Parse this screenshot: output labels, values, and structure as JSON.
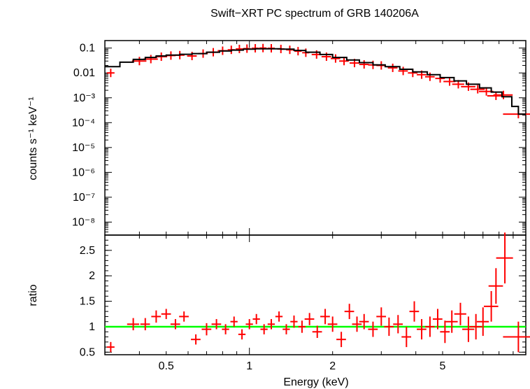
{
  "chart_data": [
    {
      "type": "scatter",
      "panel": "spectrum",
      "title": "Swift−XRT PC spectrum of GRB 140206A",
      "xlabel": "",
      "ylabel": "counts s⁻¹ keV⁻¹",
      "xscale": "log",
      "yscale": "log",
      "xlim": [
        0.3,
        10
      ],
      "ylim": [
        3e-09,
        0.2
      ],
      "y_ticks": [
        {
          "v": 0.1,
          "label": "0.1"
        },
        {
          "v": 0.01,
          "label": "0.01"
        },
        {
          "v": 0.001,
          "label": "10⁻³"
        },
        {
          "v": 0.0001,
          "label": "10⁻⁴"
        },
        {
          "v": 1e-05,
          "label": "10⁻⁵"
        },
        {
          "v": 1e-06,
          "label": "10⁻⁶"
        },
        {
          "v": 1e-07,
          "label": "10⁻⁷"
        },
        {
          "v": 1e-08,
          "label": "10⁻⁸"
        }
      ],
      "series": [
        {
          "kind": "data",
          "color": "#ff0000",
          "points": [
            [
              0.315,
              0.01,
              0.016
            ],
            [
              0.4,
              0.03,
              0.03
            ],
            [
              0.44,
              0.036,
              0.03
            ],
            [
              0.48,
              0.045,
              0.025
            ],
            [
              0.52,
              0.05,
              0.02
            ],
            [
              0.56,
              0.052,
              0.02
            ],
            [
              0.62,
              0.048,
              0.02
            ],
            [
              0.68,
              0.06,
              0.02
            ],
            [
              0.74,
              0.068,
              0.02
            ],
            [
              0.8,
              0.078,
              0.02
            ],
            [
              0.86,
              0.085,
              0.015
            ],
            [
              0.92,
              0.092,
              0.015
            ],
            [
              0.98,
              0.095,
              0.015
            ],
            [
              1.05,
              0.098,
              0.015
            ],
            [
              1.12,
              0.1,
              0.015
            ],
            [
              1.2,
              0.098,
              0.015
            ],
            [
              1.3,
              0.092,
              0.015
            ],
            [
              1.4,
              0.085,
              0.015
            ],
            [
              1.5,
              0.075,
              0.015
            ],
            [
              1.6,
              0.065,
              0.015
            ],
            [
              1.75,
              0.055,
              0.02
            ],
            [
              1.9,
              0.045,
              0.02
            ],
            [
              2.05,
              0.038,
              0.02
            ],
            [
              2.2,
              0.03,
              0.02
            ],
            [
              2.4,
              0.025,
              0.02
            ],
            [
              2.6,
              0.022,
              0.02
            ],
            [
              2.8,
              0.021,
              0.02
            ],
            [
              3.0,
              0.02,
              0.02
            ],
            [
              3.3,
              0.016,
              0.02
            ],
            [
              3.6,
              0.012,
              0.02
            ],
            [
              3.9,
              0.01,
              0.02
            ],
            [
              4.2,
              0.0085,
              0.02
            ],
            [
              4.5,
              0.007,
              0.02
            ],
            [
              4.9,
              0.006,
              0.02
            ],
            [
              5.3,
              0.0045,
              0.025
            ],
            [
              5.7,
              0.0035,
              0.025
            ],
            [
              6.2,
              0.0028,
              0.03
            ],
            [
              6.7,
              0.0022,
              0.03
            ],
            [
              7.2,
              0.0018,
              0.03
            ],
            [
              7.8,
              0.0012,
              0.035
            ],
            [
              8.3,
              0.0013,
              0.04
            ],
            [
              9.4,
              0.00022,
              0.06
            ]
          ]
        },
        {
          "kind": "model",
          "color": "#000000",
          "step_edges": [
            0.3,
            0.34,
            0.38,
            0.42,
            0.46,
            0.5,
            0.56,
            0.62,
            0.7,
            0.78,
            0.86,
            0.95,
            1.05,
            1.15,
            1.3,
            1.45,
            1.6,
            1.8,
            2.0,
            2.25,
            2.5,
            2.8,
            3.1,
            3.5,
            3.9,
            4.4,
            4.9,
            5.5,
            6.1,
            6.8,
            7.5,
            8.2,
            8.9,
            9.4,
            10
          ],
          "step_values": [
            0.018,
            0.027,
            0.035,
            0.042,
            0.048,
            0.052,
            0.056,
            0.06,
            0.068,
            0.076,
            0.083,
            0.09,
            0.094,
            0.094,
            0.09,
            0.08,
            0.068,
            0.055,
            0.042,
            0.033,
            0.026,
            0.021,
            0.018,
            0.014,
            0.011,
            0.0085,
            0.0065,
            0.0048,
            0.0035,
            0.0025,
            0.0017,
            0.0011,
            0.00045,
            0.00022
          ]
        }
      ]
    },
    {
      "type": "scatter",
      "panel": "ratio",
      "xlabel": "Energy (keV)",
      "ylabel": "ratio",
      "xscale": "log",
      "xlim": [
        0.3,
        10
      ],
      "ylim": [
        0.45,
        2.8
      ],
      "x_ticks": [
        {
          "v": 0.5,
          "label": "0.5"
        },
        {
          "v": 1,
          "label": "1"
        },
        {
          "v": 2,
          "label": "2"
        },
        {
          "v": 5,
          "label": "5"
        }
      ],
      "y_ticks": [
        {
          "v": 0.5,
          "label": "0.5"
        },
        {
          "v": 1,
          "label": "1"
        },
        {
          "v": 1.5,
          "label": "1.5"
        },
        {
          "v": 2,
          "label": "2"
        },
        {
          "v": 2.5,
          "label": "2.5"
        }
      ],
      "reference_line": {
        "y": 1,
        "color": "#00ff00"
      },
      "series": [
        {
          "kind": "data",
          "color": "#ff0000",
          "points": [
            [
              0.315,
              0.6,
              0.016,
              0.1
            ],
            [
              0.38,
              1.05,
              0.025,
              0.12
            ],
            [
              0.42,
              1.05,
              0.02,
              0.12
            ],
            [
              0.46,
              1.2,
              0.02,
              0.12
            ],
            [
              0.5,
              1.25,
              0.02,
              0.1
            ],
            [
              0.54,
              1.05,
              0.02,
              0.1
            ],
            [
              0.58,
              1.2,
              0.02,
              0.1
            ],
            [
              0.64,
              0.75,
              0.02,
              0.1
            ],
            [
              0.7,
              0.95,
              0.02,
              0.12
            ],
            [
              0.76,
              1.05,
              0.02,
              0.1
            ],
            [
              0.82,
              0.95,
              0.015,
              0.1
            ],
            [
              0.88,
              1.1,
              0.015,
              0.1
            ],
            [
              0.94,
              0.85,
              0.015,
              0.1
            ],
            [
              1.0,
              1.05,
              0.015,
              0.1
            ],
            [
              1.06,
              1.15,
              0.015,
              0.1
            ],
            [
              1.13,
              0.95,
              0.015,
              0.1
            ],
            [
              1.2,
              1.05,
              0.015,
              0.1
            ],
            [
              1.28,
              1.2,
              0.015,
              0.1
            ],
            [
              1.36,
              0.95,
              0.015,
              0.1
            ],
            [
              1.45,
              1.1,
              0.015,
              0.12
            ],
            [
              1.55,
              1.0,
              0.015,
              0.12
            ],
            [
              1.65,
              1.15,
              0.02,
              0.12
            ],
            [
              1.76,
              0.9,
              0.02,
              0.12
            ],
            [
              1.88,
              1.2,
              0.02,
              0.15
            ],
            [
              2.0,
              1.05,
              0.02,
              0.15
            ],
            [
              2.15,
              0.75,
              0.02,
              0.15
            ],
            [
              2.3,
              1.3,
              0.02,
              0.15
            ],
            [
              2.45,
              1.05,
              0.02,
              0.15
            ],
            [
              2.6,
              1.1,
              0.02,
              0.15
            ],
            [
              2.8,
              0.95,
              0.02,
              0.15
            ],
            [
              3.0,
              1.2,
              0.02,
              0.18
            ],
            [
              3.2,
              1.0,
              0.02,
              0.18
            ],
            [
              3.45,
              1.05,
              0.02,
              0.18
            ],
            [
              3.7,
              0.8,
              0.02,
              0.2
            ],
            [
              3.95,
              1.3,
              0.02,
              0.2
            ],
            [
              4.2,
              0.95,
              0.02,
              0.2
            ],
            [
              4.5,
              1.0,
              0.02,
              0.2
            ],
            [
              4.8,
              1.15,
              0.02,
              0.2
            ],
            [
              5.1,
              0.9,
              0.02,
              0.22
            ],
            [
              5.4,
              1.1,
              0.025,
              0.22
            ],
            [
              5.8,
              1.25,
              0.025,
              0.22
            ],
            [
              6.2,
              0.95,
              0.025,
              0.25
            ],
            [
              6.6,
              1.0,
              0.025,
              0.25
            ],
            [
              7.0,
              1.1,
              0.025,
              0.28
            ],
            [
              7.5,
              1.4,
              0.03,
              0.3
            ],
            [
              7.8,
              1.8,
              0.03,
              0.35
            ],
            [
              8.4,
              2.35,
              0.035,
              0.5
            ],
            [
              9.4,
              0.8,
              0.06,
              0.3
            ]
          ]
        }
      ]
    }
  ]
}
